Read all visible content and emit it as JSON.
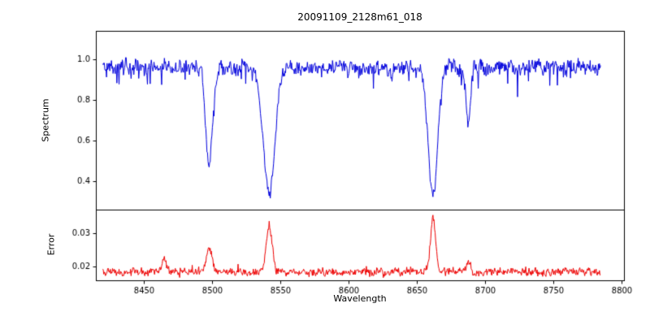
{
  "title": "20091109_2128m61_018",
  "xlabel": "Wavelength",
  "xlim": [
    8415,
    8802
  ],
  "xticks": [
    8450,
    8500,
    8550,
    8600,
    8650,
    8700,
    8750,
    8800
  ],
  "chart_data": [
    {
      "type": "line",
      "panel": "spectrum",
      "ylabel": "Spectrum",
      "series_color": "#0000dd",
      "x_data_range": [
        8420,
        8785
      ],
      "ylim": [
        0.26,
        1.14
      ],
      "yticks": [
        0.4,
        0.6,
        0.8,
        1.0
      ],
      "continuum": 0.96,
      "noise_amplitude": 0.035,
      "absorption_lines": [
        {
          "center": 8498,
          "depth_to": 0.49,
          "sigma": 2.6
        },
        {
          "center": 8542,
          "depth_to": 0.33,
          "sigma": 4.2
        },
        {
          "center": 8662,
          "depth_to": 0.33,
          "sigma": 3.4
        },
        {
          "center": 8688,
          "depth_to": 0.67,
          "sigma": 1.6
        }
      ]
    },
    {
      "type": "line",
      "panel": "error",
      "ylabel": "Error",
      "series_color": "#ee0000",
      "x_data_range": [
        8420,
        8785
      ],
      "ylim": [
        0.016,
        0.037
      ],
      "yticks": [
        0.02,
        0.03
      ],
      "baseline": 0.0185,
      "noise_amplitude": 0.0012,
      "peaks": [
        {
          "center": 8465,
          "height_to": 0.0225,
          "sigma": 1.2
        },
        {
          "center": 8498,
          "height_to": 0.026,
          "sigma": 1.8
        },
        {
          "center": 8542,
          "height_to": 0.032,
          "sigma": 2.2
        },
        {
          "center": 8662,
          "height_to": 0.034,
          "sigma": 1.9
        },
        {
          "center": 8688,
          "height_to": 0.022,
          "sigma": 1.3
        }
      ]
    }
  ]
}
